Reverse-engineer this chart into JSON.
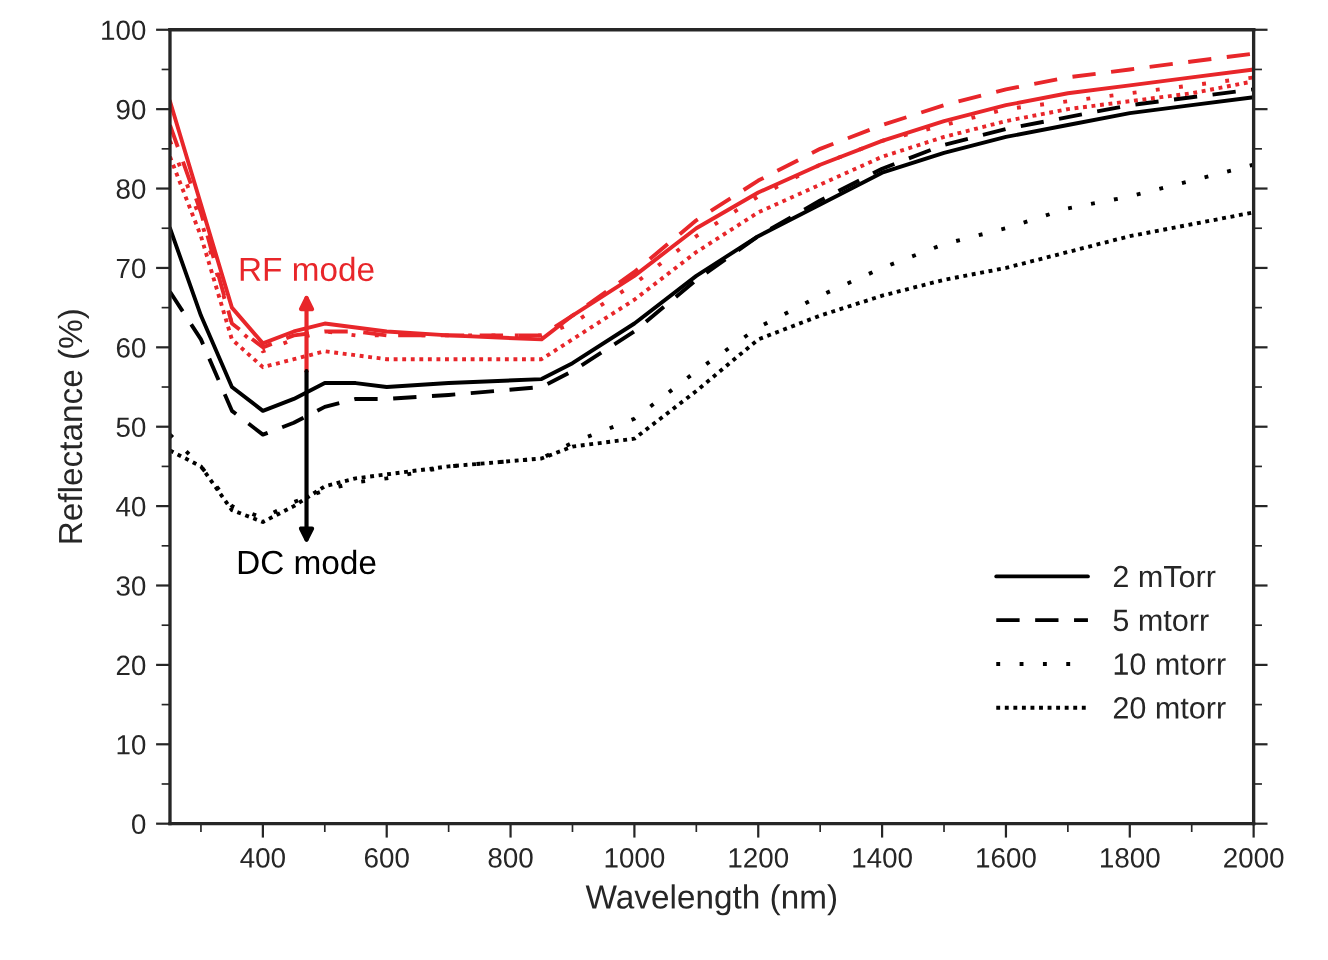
{
  "chart_data": {
    "type": "line",
    "xlabel": "Wavelength (nm)",
    "ylabel": "Reflectance (%)",
    "x": [
      250,
      300,
      350,
      400,
      450,
      500,
      550,
      600,
      700,
      850,
      900,
      1000,
      1100,
      1200,
      1300,
      1400,
      1500,
      1600,
      1700,
      1800,
      1900,
      2000
    ],
    "series": [
      {
        "name": "2 mTorr",
        "color": "#000000",
        "line_style": "solid",
        "values": [
          75,
          64,
          55,
          52,
          53.5,
          55.5,
          55.5,
          55,
          55.5,
          56,
          58,
          63,
          69,
          74,
          78,
          82,
          84.5,
          86.5,
          88,
          89.5,
          90.5,
          91.5
        ]
      },
      {
        "name": "5 mtorr",
        "color": "#000000",
        "line_style": "dashed",
        "values": [
          67,
          61,
          52,
          49,
          50.5,
          52.5,
          53.5,
          53.5,
          54,
          55,
          57,
          62,
          68.5,
          74,
          78.5,
          82.5,
          85.5,
          87.5,
          89,
          90.5,
          91.5,
          92.5
        ]
      },
      {
        "name": "10 mtorr",
        "color": "#000000",
        "line_style": "loosely dotted",
        "values": [
          49,
          45,
          40,
          38.5,
          40.5,
          42,
          43,
          43.5,
          45,
          46,
          48,
          51,
          57,
          62.5,
          66.5,
          70,
          73,
          75,
          77.5,
          79,
          81,
          83
        ]
      },
      {
        "name": "20 mtorr",
        "color": "#000000",
        "line_style": "dotted",
        "values": [
          47,
          45,
          39.5,
          38,
          40,
          42.5,
          43.5,
          44,
          45,
          46,
          47.5,
          48.5,
          54.5,
          61,
          64,
          66.5,
          68.5,
          70,
          72,
          74,
          75.5,
          77
        ]
      },
      {
        "color": "#e8262a",
        "line_style": "solid",
        "values": [
          91,
          78,
          65,
          60.5,
          62,
          63,
          62.5,
          62,
          61.5,
          61,
          64,
          69,
          75,
          79.5,
          83,
          86,
          88.5,
          90.5,
          92,
          93,
          94,
          95
        ]
      },
      {
        "color": "#e8262a",
        "line_style": "dashed",
        "values": [
          88,
          77,
          63,
          60,
          61.5,
          62,
          62,
          61.5,
          61.5,
          61.5,
          64,
          69.5,
          76,
          81,
          85,
          88,
          90.5,
          92.5,
          94,
          95,
          96,
          97
        ]
      },
      {
        "color": "#e8262a",
        "line_style": "loosely dotted",
        "values": [
          86,
          76,
          63,
          59.5,
          61,
          62,
          61.5,
          61.5,
          61.5,
          61.5,
          63,
          68,
          74,
          79,
          83,
          86,
          88,
          90,
          91,
          92,
          93,
          94
        ]
      },
      {
        "color": "#e8262a",
        "line_style": "dotted",
        "values": [
          84,
          74,
          61,
          57.5,
          58.5,
          59.5,
          59,
          58.5,
          58.5,
          58.5,
          61,
          66,
          72,
          77,
          80.5,
          84,
          86.5,
          88.5,
          90,
          91,
          92,
          93.5
        ]
      }
    ],
    "annotations": [
      "RF mode",
      "DC mode"
    ],
    "xlim": [
      250,
      2000
    ],
    "xticks": [
      400,
      600,
      800,
      1000,
      1200,
      1400,
      1600,
      1800,
      2000
    ],
    "ylim": [
      0,
      100
    ],
    "yticks": [
      0,
      10,
      20,
      30,
      40,
      50,
      60,
      70,
      80,
      90,
      100
    ],
    "grid": false,
    "legend": "bottom right"
  }
}
